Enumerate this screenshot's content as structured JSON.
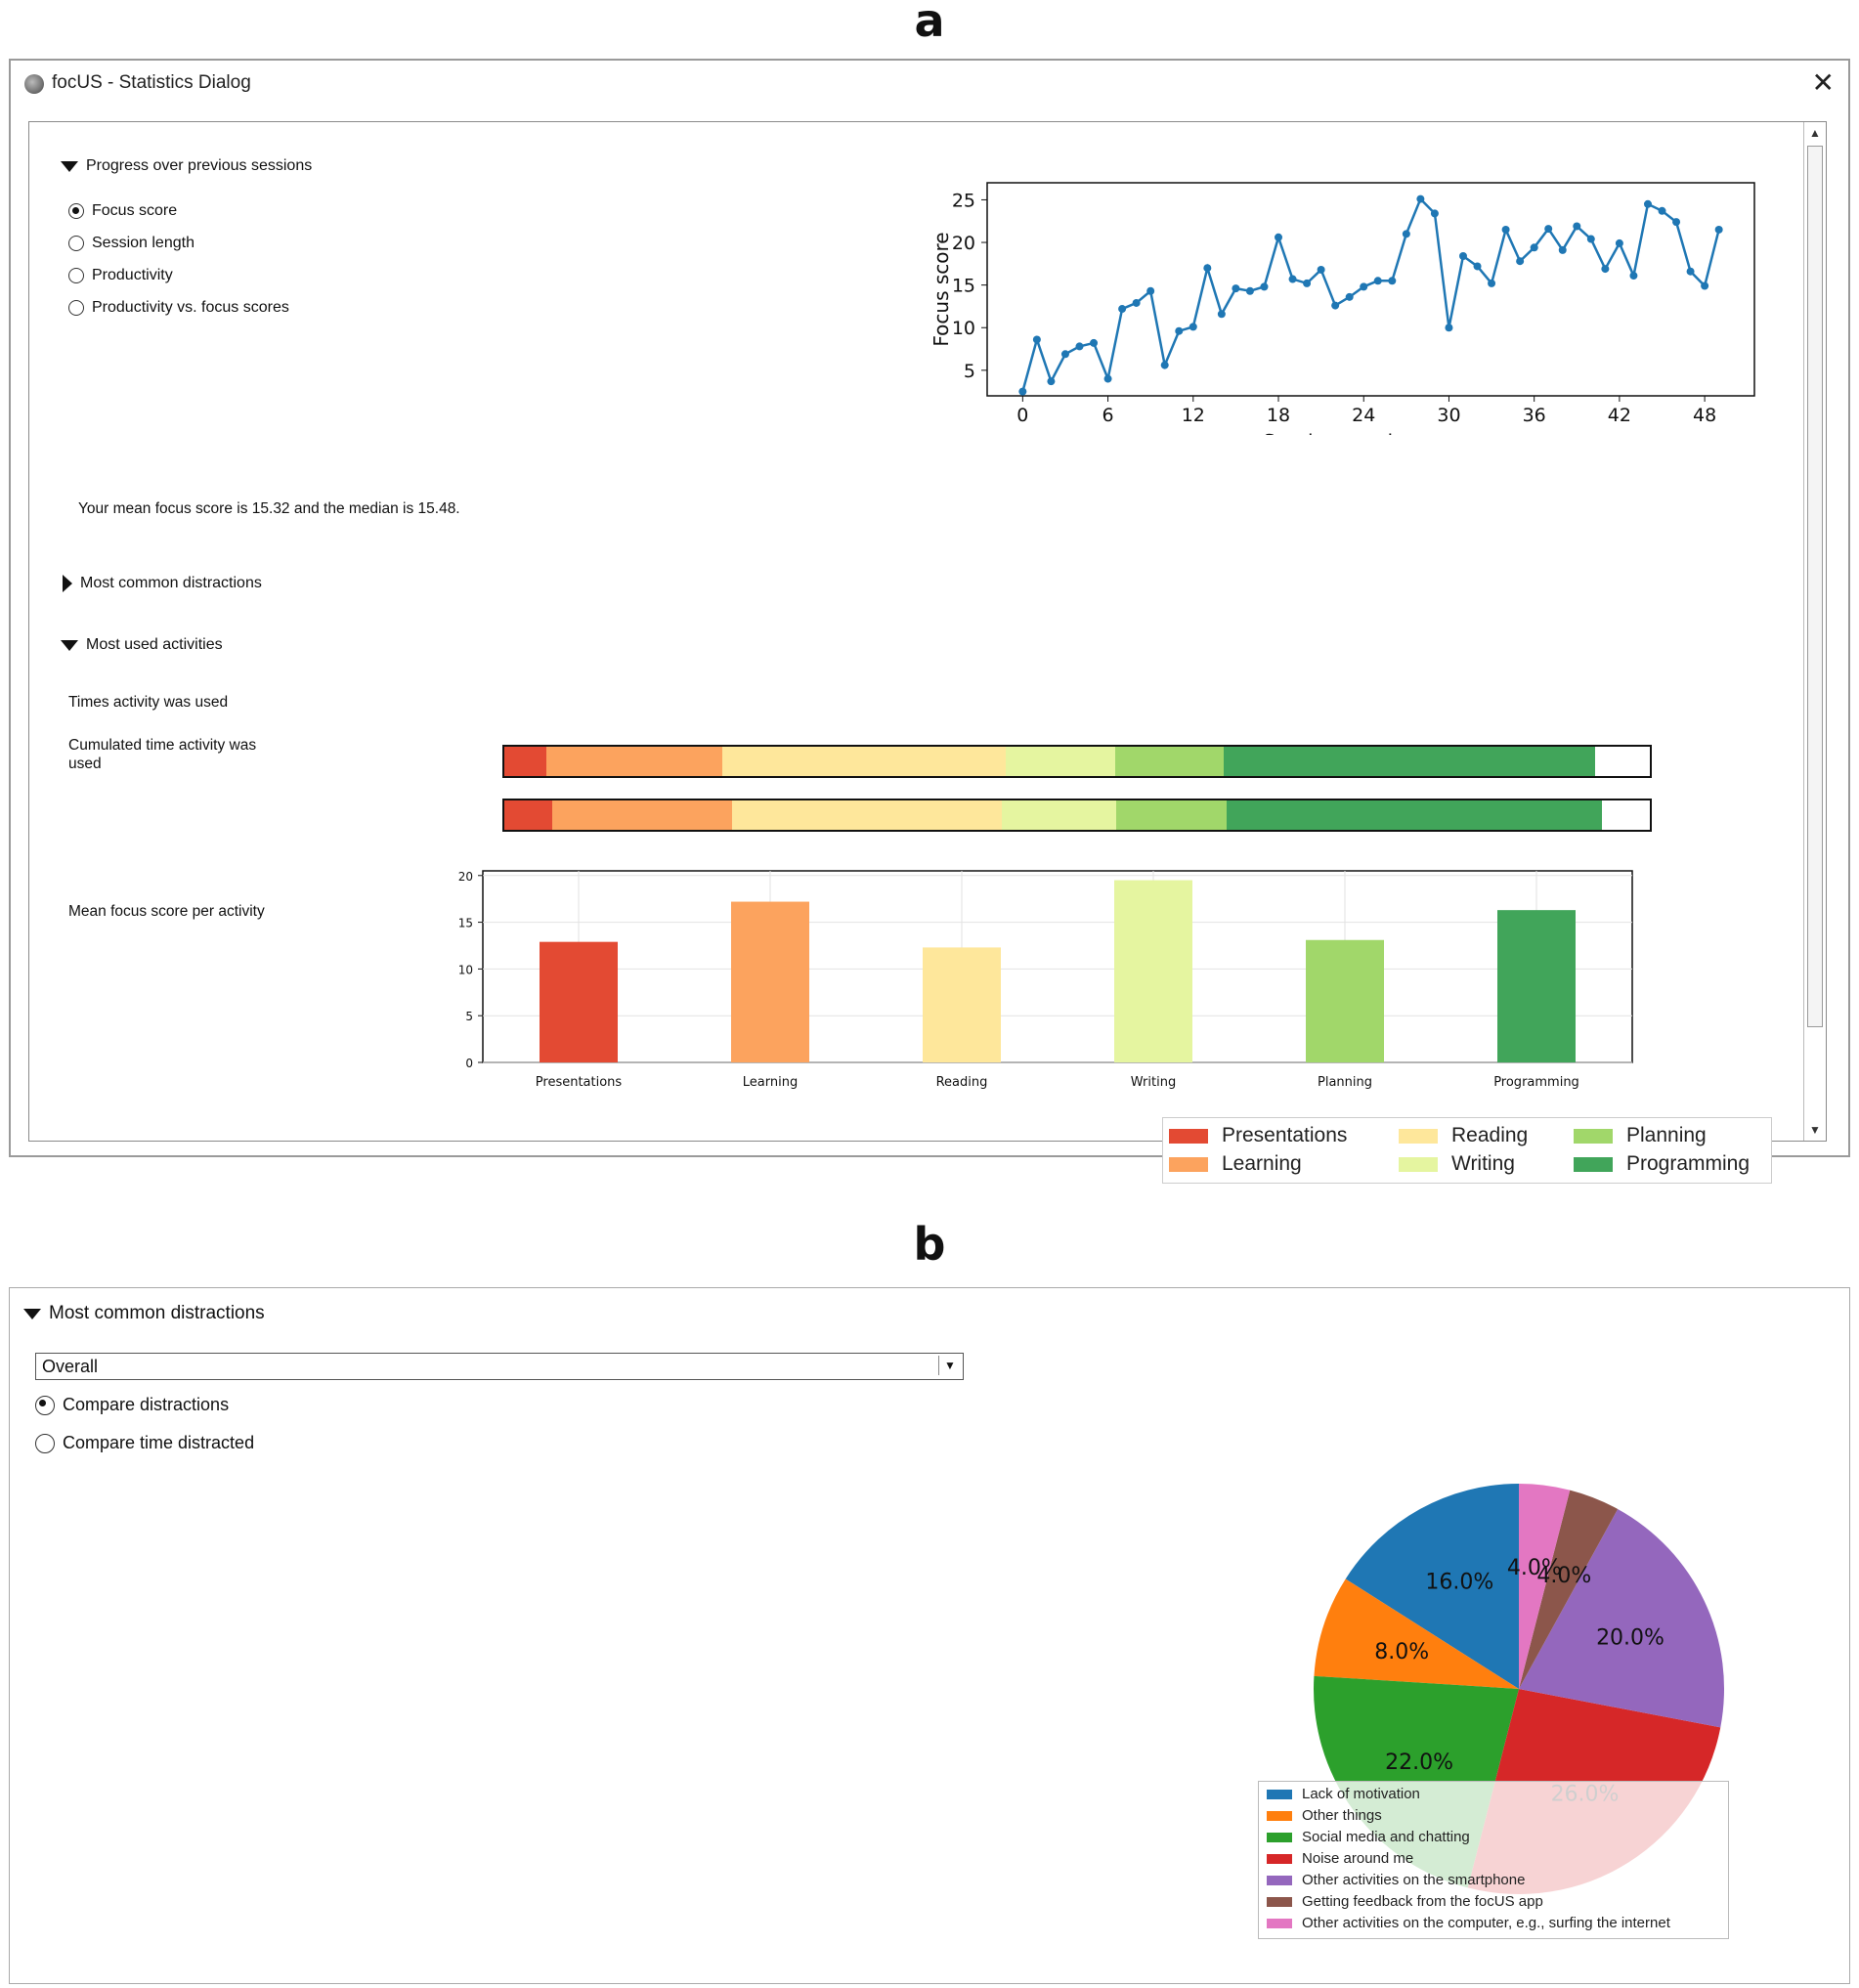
{
  "panel_a_label": "a",
  "panel_b_label": "b",
  "window": {
    "title": "focUS - Statistics Dialog",
    "close_symbol": "✕"
  },
  "progress_section": {
    "header": "Progress over previous sessions",
    "radios": [
      {
        "label": "Focus score",
        "checked": true
      },
      {
        "label": "Session length",
        "checked": false
      },
      {
        "label": "Productivity",
        "checked": false
      },
      {
        "label": "Productivity vs. focus scores",
        "checked": false
      }
    ],
    "summary": "Your mean focus score is 15.32 and the median is 15.48."
  },
  "distractions_collapsed_header": "Most common distractions",
  "activities_section": {
    "header": "Most used activities",
    "times_label": "Times activity was used",
    "cumulated_label": "Cumulated time activity was used",
    "mean_label": "Mean focus score per activity",
    "times_shares": [
      3.7,
      15.3,
      24.8,
      9.5,
      9.5,
      32.4,
      4.8
    ],
    "cumulated_shares": [
      4.2,
      15.7,
      23.5,
      10.0,
      9.7,
      32.7,
      4.2
    ]
  },
  "activity_colors": {
    "Presentations": "#e34a33",
    "Learning": "#fca35e",
    "Reading": "#fee79b",
    "Writing": "#e5f5a0",
    "Planning": "#a1d76a",
    "Programming": "#41a55a"
  },
  "legend_activities": [
    {
      "name": "Presentations",
      "color": "#e34a33"
    },
    {
      "name": "Learning",
      "color": "#fca35e"
    },
    {
      "name": "Reading",
      "color": "#fee79b"
    },
    {
      "name": "Writing",
      "color": "#e5f5a0"
    },
    {
      "name": "Planning",
      "color": "#a1d76a"
    },
    {
      "name": "Programming",
      "color": "#41a55a"
    }
  ],
  "chart_data": [
    {
      "type": "line",
      "xlabel": "Session number",
      "ylabel": "Focus score",
      "xticks": [
        0,
        6,
        12,
        18,
        24,
        30,
        36,
        42,
        48
      ],
      "yticks": [
        5,
        10,
        15,
        20,
        25
      ],
      "xlim": [
        -2.5,
        51.5
      ],
      "ylim": [
        2,
        27
      ],
      "color": "#1f77b4",
      "x": [
        0,
        1,
        2,
        3,
        4,
        5,
        6,
        7,
        8,
        9,
        10,
        11,
        12,
        13,
        14,
        15,
        16,
        17,
        18,
        19,
        20,
        21,
        22,
        23,
        24,
        25,
        26,
        27,
        28,
        29,
        30,
        31,
        32,
        33,
        34,
        35,
        36,
        37,
        38,
        39,
        40,
        41,
        42,
        43,
        44,
        45,
        46,
        47,
        48,
        49
      ],
      "y": [
        2.5,
        8.6,
        3.7,
        6.9,
        7.8,
        8.2,
        4.0,
        12.2,
        12.9,
        14.3,
        5.6,
        9.6,
        10.1,
        17.0,
        11.6,
        14.6,
        14.3,
        14.8,
        20.6,
        15.7,
        15.2,
        16.8,
        12.6,
        13.6,
        14.8,
        15.5,
        15.5,
        21.0,
        25.1,
        23.4,
        10.0,
        18.4,
        17.2,
        15.2,
        21.5,
        17.8,
        19.4,
        21.6,
        19.1,
        21.9,
        20.4,
        16.9,
        19.9,
        16.1,
        24.5,
        23.7,
        22.4,
        16.6,
        14.9,
        21.5
      ]
    },
    {
      "type": "bar",
      "categories": [
        "Presentations",
        "Learning",
        "Reading",
        "Writing",
        "Planning",
        "Programming"
      ],
      "values": [
        12.9,
        17.2,
        12.3,
        19.5,
        13.1,
        16.3
      ],
      "yticks": [
        0,
        5,
        10,
        15,
        20
      ],
      "ylim": [
        0,
        20.5
      ],
      "colors": [
        "#e34a33",
        "#fca35e",
        "#fee79b",
        "#e5f5a0",
        "#a1d76a",
        "#41a55a"
      ]
    },
    {
      "type": "pie",
      "slices": [
        {
          "label": "Lack of motivation",
          "value": 16.0,
          "pct_text": "16.0%",
          "color": "#1f77b4"
        },
        {
          "label": "Other things",
          "value": 8.0,
          "pct_text": "8.0%",
          "color": "#ff7f0e"
        },
        {
          "label": "Social media and chatting",
          "value": 22.0,
          "pct_text": "22.0%",
          "color": "#2ca02c"
        },
        {
          "label": "Noise around me",
          "value": 26.0,
          "pct_text": "26.0%",
          "color": "#d62728"
        },
        {
          "label": "Other activities on the smartphone",
          "value": 20.0,
          "pct_text": "20.0%",
          "color": "#9467bd"
        },
        {
          "label": "Getting feedback from the focUS app",
          "value": 4.0,
          "pct_text": "4.0%",
          "color": "#8c564b"
        },
        {
          "label": "Other activities on the computer, e.g., surfing the internet",
          "value": 4.0,
          "pct_text": "4.0%",
          "color": "#e377c2"
        }
      ]
    }
  ],
  "panel_b": {
    "header": "Most common distractions",
    "dropdown_value": "Overall",
    "radios": [
      {
        "label": "Compare distractions",
        "checked": true
      },
      {
        "label": "Compare time distracted",
        "checked": false
      }
    ]
  }
}
